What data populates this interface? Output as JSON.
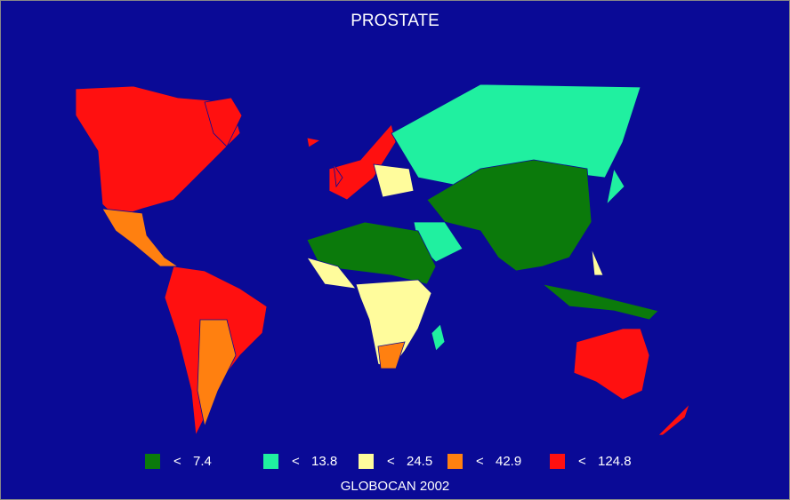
{
  "title": "PROSTATE",
  "legend": [
    {
      "symbol": "<",
      "value": 7.4,
      "color": "#0b7a0b"
    },
    {
      "symbol": "<",
      "value": 13.8,
      "color": "#20f0a0"
    },
    {
      "symbol": "<",
      "value": 24.5,
      "color": "#fffc9c"
    },
    {
      "symbol": "<",
      "value": 42.9,
      "color": "#ff8010"
    },
    {
      "symbol": "<",
      "value": 124.8,
      "color": "#ff1010"
    }
  ],
  "source": "GLOBOCAN 2002"
}
